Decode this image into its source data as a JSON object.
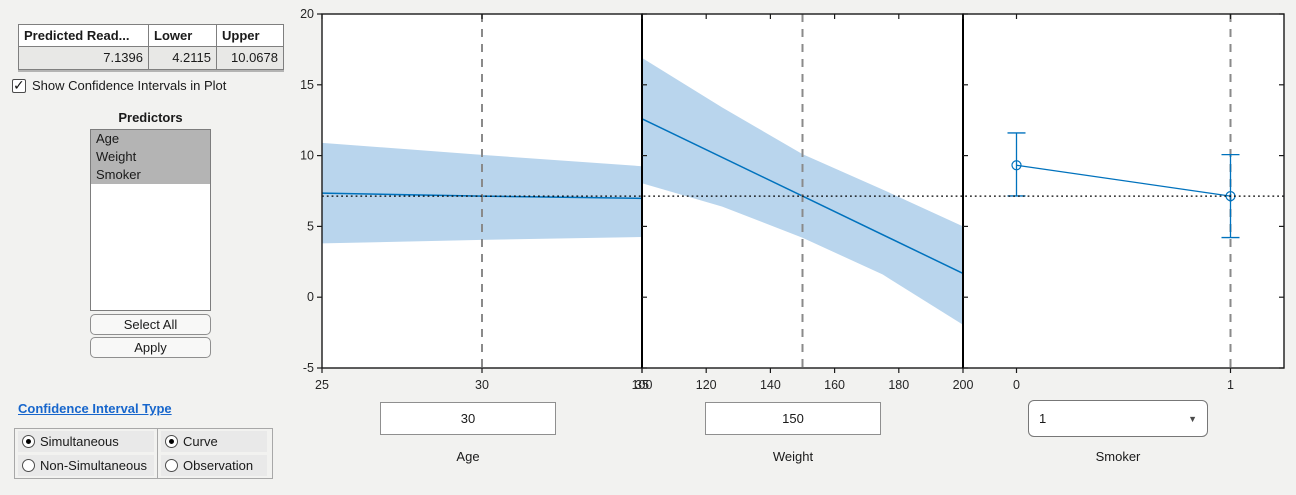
{
  "colors": {
    "accent_blue": "#0072BD",
    "band_fill": "#b9d5ed",
    "dashed_gray": "#8a8a8a",
    "link_blue": "#1766cc",
    "selection_gray": "#b4b4b4"
  },
  "info_table": {
    "headers": [
      "Predicted Read...",
      "Lower",
      "Upper"
    ],
    "row": [
      "7.1396",
      "4.2115",
      "10.0678"
    ]
  },
  "show_ci": {
    "label": "Show Confidence Intervals in Plot",
    "checked": true
  },
  "predictors": {
    "title": "Predictors",
    "items": [
      {
        "label": "Age",
        "selected": true
      },
      {
        "label": "Weight",
        "selected": true
      },
      {
        "label": "Smoker",
        "selected": true
      }
    ]
  },
  "actions": {
    "select_all": "Select All",
    "apply": "Apply"
  },
  "ci_type": {
    "title": "Confidence Interval Type",
    "groups": [
      [
        {
          "label": "Simultaneous",
          "selected": true
        },
        {
          "label": "Non-Simultaneous",
          "selected": false
        }
      ],
      [
        {
          "label": "Curve",
          "selected": true
        },
        {
          "label": "Observation",
          "selected": false
        }
      ]
    ]
  },
  "controls": [
    {
      "label": "Age",
      "value": "30",
      "kind": "text"
    },
    {
      "label": "Weight",
      "value": "150",
      "kind": "text"
    },
    {
      "label": "Smoker",
      "value": "1",
      "kind": "dropdown"
    }
  ],
  "chart_data": {
    "type": "line",
    "description": "Prediction slice plots with simultaneous curve confidence bands",
    "ylim": [
      -5,
      20
    ],
    "yticks": [
      -5,
      0,
      5,
      10,
      15,
      20
    ],
    "ref_line_y": 7.1396,
    "panels": [
      {
        "predictor": "Age",
        "xlim": [
          25,
          35
        ],
        "xticks": [
          25,
          30,
          35
        ],
        "current_value": 30,
        "line": {
          "x": [
            25,
            30,
            35
          ],
          "y": [
            7.35,
            7.14,
            6.98
          ]
        },
        "band": {
          "x": [
            25,
            30,
            35
          ],
          "upper": [
            10.9,
            10.05,
            9.25
          ],
          "lower": [
            3.8,
            4.05,
            4.25
          ]
        }
      },
      {
        "predictor": "Weight",
        "xlim": [
          100,
          200
        ],
        "xticks": [
          100,
          120,
          140,
          160,
          180,
          200
        ],
        "current_value": 150,
        "line": {
          "x": [
            100,
            150,
            200
          ],
          "y": [
            12.6,
            7.14,
            1.68
          ]
        },
        "band": {
          "x": [
            100,
            125,
            150,
            175,
            200
          ],
          "upper": [
            16.9,
            13.4,
            10.1,
            7.6,
            5.0
          ],
          "lower": [
            8.05,
            6.4,
            4.2,
            1.6,
            -1.95
          ]
        }
      },
      {
        "predictor": "Smoker",
        "xlim": [
          -0.25,
          1.25
        ],
        "xticks": [
          0,
          1
        ],
        "current_value": 1,
        "points": [
          {
            "x": 0,
            "y": 9.32,
            "lower": 7.15,
            "upper": 11.6
          },
          {
            "x": 1,
            "y": 7.1396,
            "lower": 4.2115,
            "upper": 10.0678
          }
        ]
      }
    ]
  }
}
